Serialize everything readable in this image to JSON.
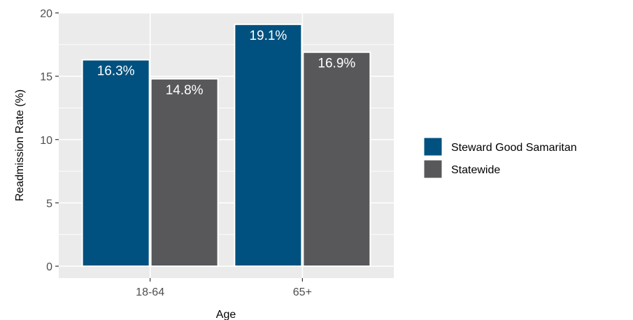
{
  "chart_data": {
    "type": "bar",
    "title": "",
    "xlabel": "Age",
    "ylabel": "Readmission Rate (%)",
    "categories": [
      "18-64",
      "65+"
    ],
    "ylim": [
      0,
      20
    ],
    "yticks": [
      0,
      5,
      10,
      15,
      20
    ],
    "grid": true,
    "legend_position": "right",
    "series": [
      {
        "name": "Steward Good Samaritan",
        "color": "#00517f",
        "values": [
          16.3,
          19.1
        ],
        "labels": [
          "16.3%",
          "19.1%"
        ]
      },
      {
        "name": "Statewide",
        "color": "#58585b",
        "values": [
          14.8,
          16.9
        ],
        "labels": [
          "14.8%",
          "16.9%"
        ]
      }
    ]
  }
}
